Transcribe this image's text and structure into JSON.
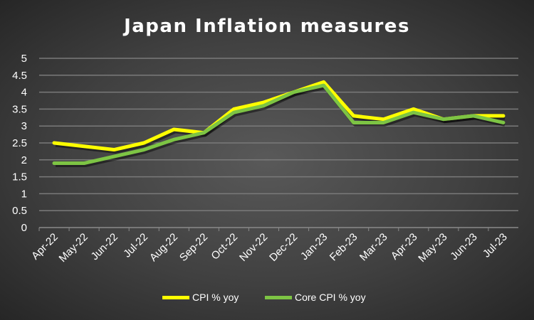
{
  "chart_data": {
    "type": "line",
    "title": "Japan Inflation measures",
    "categories": [
      "Apr-22",
      "May-22",
      "Jun-22",
      "Jul-22",
      "Aug-22",
      "Sep-22",
      "Oct-22",
      "Nov-22",
      "Dec-22",
      "Jan-23",
      "Feb-23",
      "Mar-23",
      "Apr-23",
      "May-23",
      "Jun-23",
      "Jul-23"
    ],
    "series": [
      {
        "name": "CPI % yoy",
        "color": "#ffff00",
        "values": [
          2.5,
          2.4,
          2.3,
          2.5,
          2.9,
          2.8,
          3.5,
          3.7,
          4.0,
          4.3,
          3.3,
          3.2,
          3.5,
          3.2,
          3.3,
          3.3
        ]
      },
      {
        "name": "Core CPI % yoy",
        "color": "#7dc444",
        "values": [
          1.9,
          1.9,
          2.1,
          2.3,
          2.6,
          2.8,
          3.4,
          3.6,
          4.0,
          4.2,
          3.1,
          3.1,
          3.4,
          3.2,
          3.3,
          3.1
        ]
      }
    ],
    "yticks": [
      "0",
      "0.5",
      "1",
      "1.5",
      "2",
      "2.5",
      "3",
      "3.5",
      "4",
      "4.5",
      "5"
    ],
    "ylim": [
      0,
      5
    ],
    "grid": true,
    "legend": "bottom",
    "xlabel": "",
    "ylabel": ""
  }
}
